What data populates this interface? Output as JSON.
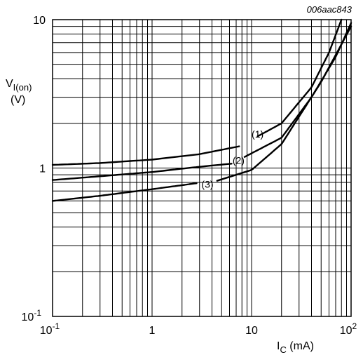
{
  "figure_id": "006aac843",
  "chart_data": {
    "type": "line",
    "title": "",
    "x_scale": "log",
    "y_scale": "log",
    "xlim": [
      0.1,
      100
    ],
    "ylim": [
      0.1,
      10
    ],
    "grid": true,
    "legend": "none",
    "xlabel": {
      "main": "I",
      "sub": "C",
      "unit": " (mA)"
    },
    "ylabel": {
      "main": "V",
      "sub": "I(on)",
      "unit": "(V)"
    },
    "x_ticks": [
      {
        "value": 0.1,
        "base": "10",
        "exp": "-1"
      },
      {
        "value": 1,
        "base": "1",
        "exp": ""
      },
      {
        "value": 10,
        "base": "10",
        "exp": ""
      },
      {
        "value": 100,
        "base": "10",
        "exp": "2"
      }
    ],
    "y_ticks": [
      {
        "value": 0.1,
        "base": "10",
        "exp": "-1"
      },
      {
        "value": 1,
        "base": "1",
        "exp": ""
      },
      {
        "value": 10,
        "base": "10",
        "exp": ""
      }
    ],
    "series": [
      {
        "label": "(1)",
        "x": [
          0.1,
          0.3,
          1,
          3,
          7.5,
          20,
          40,
          60,
          80
        ],
        "y": [
          1.05,
          1.08,
          1.14,
          1.24,
          1.4,
          2.0,
          3.5,
          6.0,
          10.0
        ],
        "label_at": {
          "x": 11.5,
          "y": 1.7
        }
      },
      {
        "label": "(2)",
        "x": [
          0.1,
          0.3,
          1,
          3,
          6.3,
          20,
          40,
          70,
          100
        ],
        "y": [
          0.83,
          0.88,
          0.94,
          1.02,
          1.07,
          1.6,
          3.0,
          5.6,
          9.5
        ],
        "label_at": {
          "x": 7.4,
          "y": 1.13
        }
      },
      {
        "label": "(3)",
        "x": [
          0.1,
          0.3,
          1,
          2.8,
          4.5,
          10,
          20,
          50,
          100
        ],
        "y": [
          0.6,
          0.65,
          0.72,
          0.79,
          0.82,
          0.97,
          1.45,
          3.8,
          9.0
        ],
        "label_at": {
          "x": 3.6,
          "y": 0.78
        }
      }
    ],
    "label_gaps": [
      {
        "series": 0,
        "from": 7.5,
        "to": 11.5
      },
      {
        "series": 1,
        "from": 6.3,
        "to": 8.5
      },
      {
        "series": 2,
        "from": 2.8,
        "to": 4.5
      }
    ]
  }
}
